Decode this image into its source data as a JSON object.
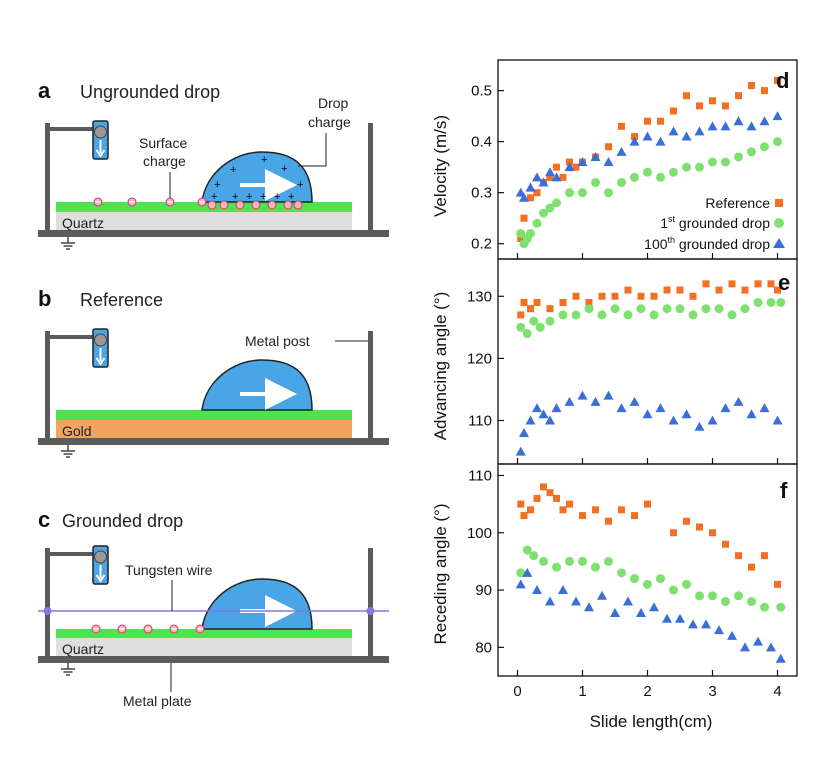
{
  "schematics": {
    "a": {
      "letter": "a",
      "title": "Ungrounded drop",
      "surface_charge": [
        "Surface",
        "charge"
      ],
      "drop_charge": [
        "Drop",
        "charge"
      ],
      "substrate": "Quartz"
    },
    "b": {
      "letter": "b",
      "title": "Reference",
      "metal_post": "Metal post",
      "substrate": "Gold"
    },
    "c": {
      "letter": "c",
      "title": "Grounded drop",
      "tungsten_wire": "Tungsten wire",
      "substrate": "Quartz",
      "metal_plate": "Metal plate"
    }
  },
  "colors": {
    "reference": "#f36f21",
    "first": "#7ee16f",
    "hundredth": "#3b6fd8",
    "green_layer": "#4fe34f",
    "quartz": "#dedede",
    "gold": "#f2a35f",
    "drop": "#4aa5e6",
    "frame": "#5b5b5b",
    "wire": "#8d74e0"
  },
  "legend": {
    "reference": "Reference",
    "first_num": "1",
    "first_sup": "st",
    "first_rest": " grounded drop",
    "hundredth_num": "100",
    "hundredth_sup": "th",
    "hundredth_rest": " grounded drop"
  },
  "chart_data": [
    {
      "type": "scatter",
      "panel": "d",
      "ylabel": "Velocity (m/s)",
      "xlabel": "",
      "xlim": [
        -0.3,
        4.3
      ],
      "ylim": [
        0.17,
        0.56
      ],
      "yticks": [
        "0.2",
        "0.3",
        "0.4",
        "0.5"
      ],
      "ytick_values": [
        0.2,
        0.3,
        0.4,
        0.5
      ],
      "series": [
        {
          "name": "Reference",
          "key": "reference",
          "marker": "square",
          "points": [
            [
              0.05,
              0.21
            ],
            [
              0.1,
              0.25
            ],
            [
              0.2,
              0.29
            ],
            [
              0.3,
              0.3
            ],
            [
              0.4,
              0.32
            ],
            [
              0.5,
              0.33
            ],
            [
              0.6,
              0.35
            ],
            [
              0.7,
              0.33
            ],
            [
              0.8,
              0.36
            ],
            [
              0.9,
              0.35
            ],
            [
              1.0,
              0.36
            ],
            [
              1.2,
              0.37
            ],
            [
              1.4,
              0.39
            ],
            [
              1.6,
              0.43
            ],
            [
              1.8,
              0.41
            ],
            [
              2.0,
              0.44
            ],
            [
              2.2,
              0.44
            ],
            [
              2.4,
              0.46
            ],
            [
              2.6,
              0.49
            ],
            [
              2.8,
              0.47
            ],
            [
              3.0,
              0.48
            ],
            [
              3.2,
              0.47
            ],
            [
              3.4,
              0.49
            ],
            [
              3.6,
              0.51
            ],
            [
              3.8,
              0.5
            ],
            [
              4.0,
              0.52
            ]
          ]
        },
        {
          "name": "1st grounded drop",
          "key": "first",
          "marker": "circle",
          "points": [
            [
              0.05,
              0.22
            ],
            [
              0.1,
              0.2
            ],
            [
              0.15,
              0.21
            ],
            [
              0.2,
              0.22
            ],
            [
              0.3,
              0.24
            ],
            [
              0.4,
              0.26
            ],
            [
              0.5,
              0.27
            ],
            [
              0.6,
              0.28
            ],
            [
              0.8,
              0.3
            ],
            [
              1.0,
              0.3
            ],
            [
              1.2,
              0.32
            ],
            [
              1.4,
              0.3
            ],
            [
              1.6,
              0.32
            ],
            [
              1.8,
              0.33
            ],
            [
              2.0,
              0.34
            ],
            [
              2.2,
              0.33
            ],
            [
              2.4,
              0.34
            ],
            [
              2.6,
              0.35
            ],
            [
              2.8,
              0.35
            ],
            [
              3.0,
              0.36
            ],
            [
              3.2,
              0.36
            ],
            [
              3.4,
              0.37
            ],
            [
              3.6,
              0.38
            ],
            [
              3.8,
              0.39
            ],
            [
              4.0,
              0.4
            ]
          ]
        },
        {
          "name": "100th grounded drop",
          "key": "hundredth",
          "marker": "triangle",
          "points": [
            [
              0.05,
              0.3
            ],
            [
              0.1,
              0.29
            ],
            [
              0.2,
              0.31
            ],
            [
              0.3,
              0.33
            ],
            [
              0.4,
              0.32
            ],
            [
              0.5,
              0.34
            ],
            [
              0.6,
              0.33
            ],
            [
              0.8,
              0.35
            ],
            [
              1.0,
              0.36
            ],
            [
              1.2,
              0.37
            ],
            [
              1.4,
              0.36
            ],
            [
              1.6,
              0.38
            ],
            [
              1.8,
              0.4
            ],
            [
              2.0,
              0.41
            ],
            [
              2.2,
              0.4
            ],
            [
              2.4,
              0.42
            ],
            [
              2.6,
              0.41
            ],
            [
              2.8,
              0.42
            ],
            [
              3.0,
              0.43
            ],
            [
              3.2,
              0.43
            ],
            [
              3.4,
              0.44
            ],
            [
              3.6,
              0.43
            ],
            [
              3.8,
              0.44
            ],
            [
              4.0,
              0.45
            ]
          ]
        }
      ]
    },
    {
      "type": "scatter",
      "panel": "e",
      "ylabel": "Advancing angle (°)",
      "xlabel": "",
      "xlim": [
        -0.3,
        4.3
      ],
      "ylim": [
        103,
        136
      ],
      "yticks": [
        "110",
        "120",
        "130"
      ],
      "ytick_values": [
        110,
        120,
        130
      ],
      "series": [
        {
          "name": "Reference",
          "key": "reference",
          "marker": "square",
          "points": [
            [
              0.05,
              127
            ],
            [
              0.1,
              129
            ],
            [
              0.2,
              128
            ],
            [
              0.3,
              129
            ],
            [
              0.5,
              128
            ],
            [
              0.7,
              129
            ],
            [
              0.9,
              130
            ],
            [
              1.1,
              129
            ],
            [
              1.3,
              130
            ],
            [
              1.5,
              130
            ],
            [
              1.7,
              131
            ],
            [
              1.9,
              130
            ],
            [
              2.1,
              130
            ],
            [
              2.3,
              131
            ],
            [
              2.5,
              131
            ],
            [
              2.7,
              130
            ],
            [
              2.9,
              132
            ],
            [
              3.1,
              131
            ],
            [
              3.3,
              132
            ],
            [
              3.5,
              131
            ],
            [
              3.7,
              132
            ],
            [
              3.9,
              132
            ],
            [
              4.0,
              131
            ]
          ]
        },
        {
          "name": "1st grounded drop",
          "key": "first",
          "marker": "circle",
          "points": [
            [
              0.05,
              125
            ],
            [
              0.15,
              124
            ],
            [
              0.25,
              126
            ],
            [
              0.35,
              125
            ],
            [
              0.5,
              126
            ],
            [
              0.7,
              127
            ],
            [
              0.9,
              127
            ],
            [
              1.1,
              128
            ],
            [
              1.3,
              127
            ],
            [
              1.5,
              128
            ],
            [
              1.7,
              127
            ],
            [
              1.9,
              128
            ],
            [
              2.1,
              127
            ],
            [
              2.3,
              128
            ],
            [
              2.5,
              128
            ],
            [
              2.7,
              127
            ],
            [
              2.9,
              128
            ],
            [
              3.1,
              128
            ],
            [
              3.3,
              127
            ],
            [
              3.5,
              128
            ],
            [
              3.7,
              129
            ],
            [
              3.9,
              129
            ],
            [
              4.05,
              129
            ]
          ]
        },
        {
          "name": "100th grounded drop",
          "key": "hundredth",
          "marker": "triangle",
          "points": [
            [
              0.05,
              105
            ],
            [
              0.1,
              108
            ],
            [
              0.2,
              110
            ],
            [
              0.3,
              112
            ],
            [
              0.4,
              111
            ],
            [
              0.5,
              110
            ],
            [
              0.6,
              112
            ],
            [
              0.8,
              113
            ],
            [
              1.0,
              114
            ],
            [
              1.2,
              113
            ],
            [
              1.4,
              114
            ],
            [
              1.6,
              112
            ],
            [
              1.8,
              113
            ],
            [
              2.0,
              111
            ],
            [
              2.2,
              112
            ],
            [
              2.4,
              110
            ],
            [
              2.6,
              111
            ],
            [
              2.8,
              109
            ],
            [
              3.0,
              110
            ],
            [
              3.2,
              112
            ],
            [
              3.4,
              113
            ],
            [
              3.6,
              111
            ],
            [
              3.8,
              112
            ],
            [
              4.0,
              110
            ]
          ]
        }
      ]
    },
    {
      "type": "scatter",
      "panel": "f",
      "ylabel": "Receding angle (°)",
      "xlabel": "Slide length(cm)",
      "xlim": [
        -0.3,
        4.3
      ],
      "ylim": [
        75,
        112
      ],
      "xticks": [
        "0",
        "1",
        "2",
        "3",
        "4"
      ],
      "xtick_values": [
        0,
        1,
        2,
        3,
        4
      ],
      "yticks": [
        "80",
        "90",
        "100",
        "110"
      ],
      "ytick_values": [
        80,
        90,
        100,
        110
      ],
      "series": [
        {
          "name": "Reference",
          "key": "reference",
          "marker": "square",
          "points": [
            [
              0.05,
              105
            ],
            [
              0.1,
              103
            ],
            [
              0.2,
              104
            ],
            [
              0.3,
              106
            ],
            [
              0.4,
              108
            ],
            [
              0.5,
              107
            ],
            [
              0.6,
              106
            ],
            [
              0.7,
              104
            ],
            [
              0.8,
              105
            ],
            [
              1.0,
              103
            ],
            [
              1.2,
              104
            ],
            [
              1.4,
              102
            ],
            [
              1.6,
              104
            ],
            [
              1.8,
              103
            ],
            [
              2.0,
              105
            ],
            [
              2.4,
              100
            ],
            [
              2.6,
              102
            ],
            [
              2.8,
              101
            ],
            [
              3.0,
              100
            ],
            [
              3.2,
              98
            ],
            [
              3.4,
              96
            ],
            [
              3.6,
              94
            ],
            [
              3.8,
              96
            ],
            [
              4.0,
              91
            ]
          ]
        },
        {
          "name": "1st grounded drop",
          "key": "first",
          "marker": "circle",
          "points": [
            [
              0.05,
              93
            ],
            [
              0.15,
              97
            ],
            [
              0.25,
              96
            ],
            [
              0.4,
              95
            ],
            [
              0.6,
              94
            ],
            [
              0.8,
              95
            ],
            [
              1.0,
              95
            ],
            [
              1.2,
              94
            ],
            [
              1.4,
              95
            ],
            [
              1.6,
              93
            ],
            [
              1.8,
              92
            ],
            [
              2.0,
              91
            ],
            [
              2.2,
              92
            ],
            [
              2.4,
              90
            ],
            [
              2.6,
              91
            ],
            [
              2.8,
              89
            ],
            [
              3.0,
              89
            ],
            [
              3.2,
              88
            ],
            [
              3.4,
              89
            ],
            [
              3.6,
              88
            ],
            [
              3.8,
              87
            ],
            [
              4.05,
              87
            ]
          ]
        },
        {
          "name": "100th grounded drop",
          "key": "hundredth",
          "marker": "triangle",
          "points": [
            [
              0.05,
              91
            ],
            [
              0.15,
              93
            ],
            [
              0.3,
              90
            ],
            [
              0.5,
              88
            ],
            [
              0.7,
              90
            ],
            [
              0.9,
              88
            ],
            [
              1.1,
              87
            ],
            [
              1.3,
              89
            ],
            [
              1.5,
              86
            ],
            [
              1.7,
              88
            ],
            [
              1.9,
              86
            ],
            [
              2.1,
              87
            ],
            [
              2.3,
              85
            ],
            [
              2.5,
              85
            ],
            [
              2.7,
              84
            ],
            [
              2.9,
              84
            ],
            [
              3.1,
              83
            ],
            [
              3.3,
              82
            ],
            [
              3.5,
              80
            ],
            [
              3.7,
              81
            ],
            [
              3.9,
              80
            ],
            [
              4.05,
              78
            ]
          ]
        }
      ]
    }
  ]
}
